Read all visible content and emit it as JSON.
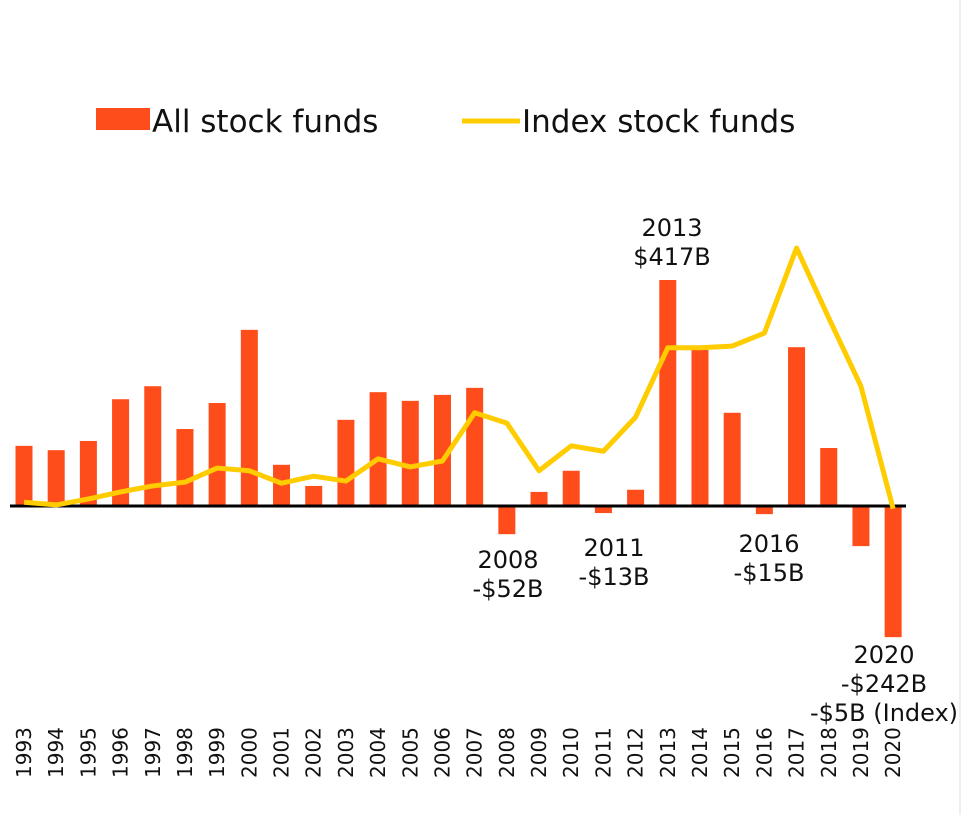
{
  "chart_data": {
    "type": "bar_line",
    "categories": [
      "1993",
      "1994",
      "1995",
      "1996",
      "1997",
      "1998",
      "1999",
      "2000",
      "2001",
      "2002",
      "2003",
      "2004",
      "2005",
      "2006",
      "2007",
      "2008",
      "2009",
      "2010",
      "2011",
      "2012",
      "2013",
      "2014",
      "2015",
      "2016",
      "2017",
      "2018",
      "2019",
      "2020"
    ],
    "series": [
      {
        "name": "All stock funds",
        "color": "#ff4c1b",
        "type": "bar",
        "values": [
          111,
          103,
          120,
          197,
          221,
          142,
          190,
          325,
          76,
          37,
          159,
          210,
          194,
          205,
          218,
          -52,
          26,
          65,
          -13,
          30,
          417,
          288,
          172,
          -15,
          293,
          107,
          -74,
          -242
        ]
      },
      {
        "name": "Index stock funds",
        "color": "#ffcc00",
        "type": "line",
        "values": [
          7,
          2,
          13,
          26,
          37,
          44,
          70,
          65,
          42,
          55,
          46,
          87,
          72,
          83,
          172,
          153,
          65,
          111,
          101,
          164,
          292,
          292,
          295,
          319,
          476,
          347,
          221,
          -5
        ]
      }
    ],
    "ylim": [
      -250,
      500
    ],
    "annotations": [
      [
        "2013",
        "$417B"
      ],
      [
        "2008",
        "-$52B"
      ],
      [
        "2011",
        "-$13B"
      ],
      [
        "2016",
        "-$15B"
      ],
      [
        "2020",
        "-$242B",
        "-$5B (Index)"
      ]
    ]
  }
}
